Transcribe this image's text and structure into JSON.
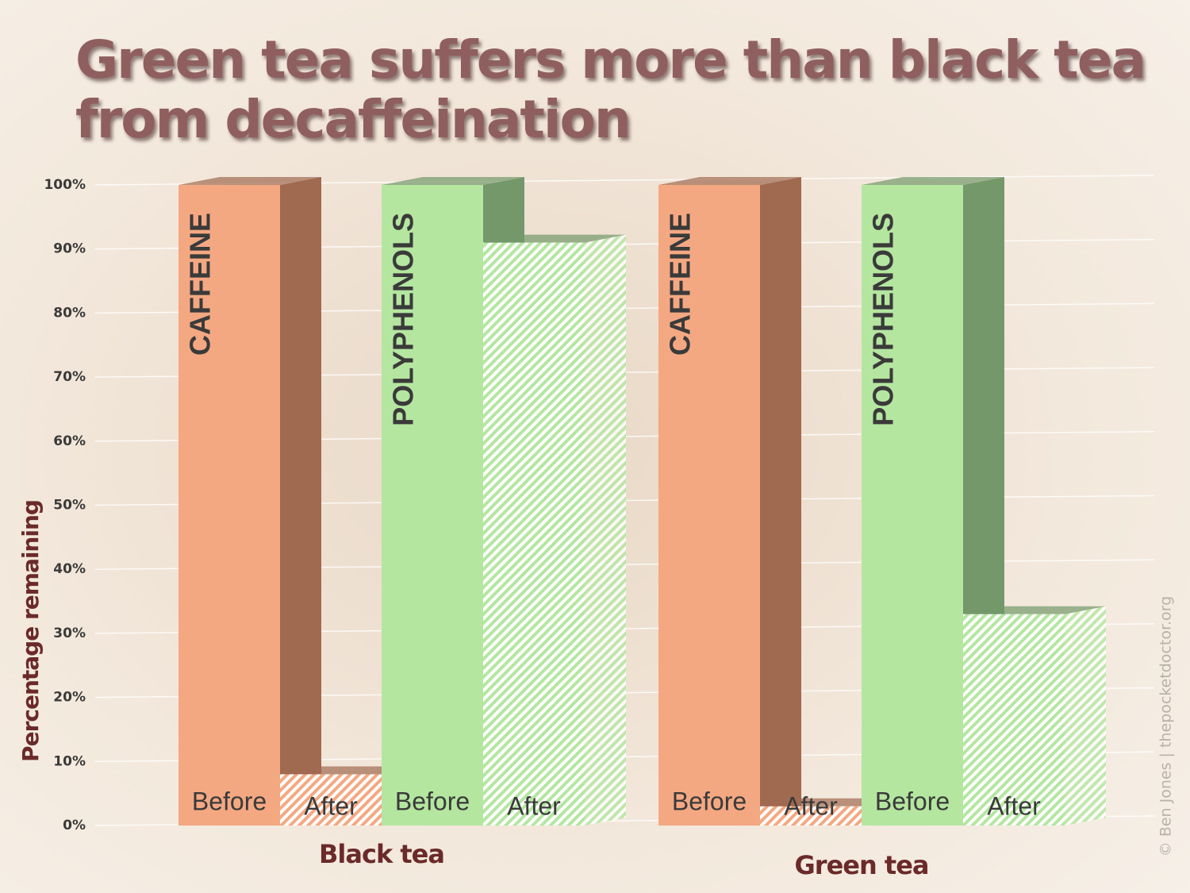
{
  "chart_data": {
    "type": "bar3d",
    "title": "Green tea suffers more than black tea from decaffeination",
    "y_label": "Percentage remaining",
    "credit": "© Ben Jones | thepocketdoctor.org",
    "categories": [
      "Black tea",
      "Green tea"
    ],
    "stage_labels": [
      "Before",
      "After"
    ],
    "series": [
      {
        "name": "CAFFEINE",
        "color": "#f4a882",
        "side_color": "#a06a50",
        "before": [
          100,
          100
        ],
        "after": [
          8,
          3
        ]
      },
      {
        "name": "POLYPHENOLS",
        "color": "#b4e6a0",
        "side_color": "#74986a",
        "before": [
          100,
          100
        ],
        "after": [
          91,
          33
        ]
      }
    ],
    "ylim": [
      0,
      100
    ],
    "yticks": [
      {
        "value": 0,
        "label": "0%"
      },
      {
        "value": 10,
        "label": "10%"
      },
      {
        "value": 20,
        "label": "20%"
      },
      {
        "value": 30,
        "label": "30%"
      },
      {
        "value": 40,
        "label": "40%"
      },
      {
        "value": 50,
        "label": "50%"
      },
      {
        "value": 60,
        "label": "60%"
      },
      {
        "value": 70,
        "label": "70%"
      },
      {
        "value": 80,
        "label": "80%"
      },
      {
        "value": 90,
        "label": "90%"
      },
      {
        "value": 100,
        "label": "100%"
      }
    ],
    "grid": true
  }
}
